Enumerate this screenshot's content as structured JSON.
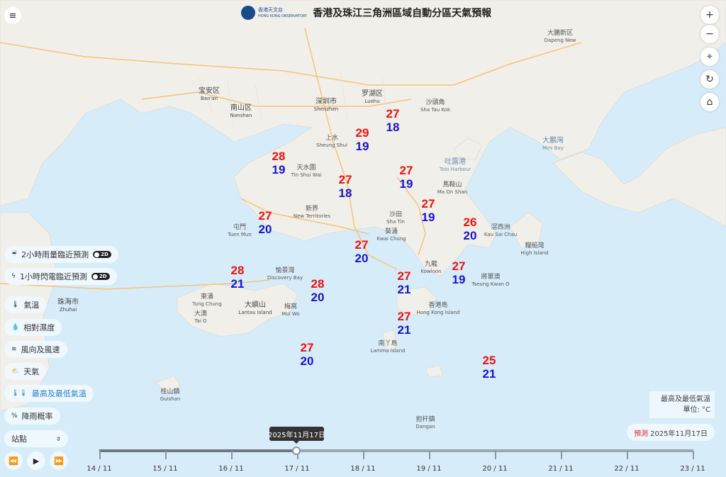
{
  "header": {
    "title": "香港及珠江三角洲區域自動分區天氣預報",
    "logo_zh": "香港天文台",
    "logo_en": "HONG KONG OBSERVATORY"
  },
  "controls": {
    "menu_icon": "hamburger-icon",
    "zoom_in": "+",
    "zoom_out": "−",
    "locate_icon": "crosshair-icon",
    "refresh_icon": "refresh-icon",
    "home_icon": "home-icon"
  },
  "layers": [
    {
      "label": "2小時雨量臨近預測",
      "icon": "rain-cloud-icon",
      "toggle": "2D"
    },
    {
      "label": "1小時閃電臨近預測",
      "icon": "lightning-icon",
      "toggle": "2D"
    },
    {
      "label": "氣溫",
      "icon": "thermometer-icon"
    },
    {
      "label": "相對濕度",
      "icon": "droplet-icon"
    },
    {
      "label": "風向及風速",
      "icon": "wind-icon"
    },
    {
      "label": "天氣",
      "icon": "weather-icon"
    },
    {
      "label": "最高及最低氣溫",
      "icon": "max-min-thermometer-icon",
      "selected": true
    },
    {
      "label": "降雨概率",
      "icon": "percent-icon"
    }
  ],
  "station_select": {
    "value": "站點"
  },
  "playback": {
    "rewind": "⏪",
    "play": "▶",
    "forward": "⏩"
  },
  "legend": {
    "title": "最高及最低氣溫",
    "unit": "單位: °C"
  },
  "forecast": {
    "label": "預測",
    "date": "2025年11月17日"
  },
  "timeline": {
    "ticks": [
      "14 / 11",
      "15 / 11",
      "16 / 11",
      "17 / 11",
      "18 / 11",
      "19 / 11",
      "20 / 11",
      "21 / 11",
      "22 / 11",
      "23 / 11"
    ],
    "selected": "2025年11月17日",
    "selected_index": 3
  },
  "colors": {
    "max": "#f01010",
    "min": "#1414d8",
    "accent": "#2b7fc4"
  },
  "temps": [
    {
      "max": "27",
      "min": "18"
    },
    {
      "max": "29",
      "min": "19"
    },
    {
      "max": "28",
      "min": "19"
    },
    {
      "max": "27",
      "min": "18"
    },
    {
      "max": "27",
      "min": "19"
    },
    {
      "max": "27",
      "min": "19"
    },
    {
      "max": "27",
      "min": "20"
    },
    {
      "max": "26",
      "min": "20"
    },
    {
      "max": "27",
      "min": "20"
    },
    {
      "max": "28",
      "min": "21"
    },
    {
      "max": "28",
      "min": "20"
    },
    {
      "max": "27",
      "min": "21"
    },
    {
      "max": "27",
      "min": "19"
    },
    {
      "max": "27",
      "min": "21"
    },
    {
      "max": "27",
      "min": "20"
    },
    {
      "max": "25",
      "min": "21"
    }
  ],
  "places": [
    {
      "zh": "宝安区",
      "en": "Bao'an"
    },
    {
      "zh": "南山区",
      "en": "Nanshan"
    },
    {
      "zh": "深圳市",
      "en": "Shenzhen"
    },
    {
      "zh": "罗湖区",
      "en": "Luohu"
    },
    {
      "zh": "沙頭角",
      "en": "Sha Tau Kok"
    },
    {
      "zh": "大鵬新区",
      "en": "Dapeng New"
    },
    {
      "zh": "大鵬灣",
      "en": "Mirs Bay"
    },
    {
      "zh": "天水圍",
      "en": "Tin Shui Wai"
    },
    {
      "zh": "新界",
      "en": "New Territories"
    },
    {
      "zh": "馬鞍山",
      "en": "Ma On Shan"
    },
    {
      "zh": "沙田",
      "en": "Sha Tin"
    },
    {
      "zh": "吐露港",
      "en": "Tolo Harbour"
    },
    {
      "zh": "滘西洲",
      "en": "Kau Sai Chau"
    },
    {
      "zh": "糧船灣",
      "en": "High Island"
    },
    {
      "zh": "屯門",
      "en": "Tuen Mun"
    },
    {
      "zh": "葵涌",
      "en": "Kwai Chung"
    },
    {
      "zh": "九龍",
      "en": "Kowloon"
    },
    {
      "zh": "將軍澳",
      "en": "Tseung Kwan O"
    },
    {
      "zh": "香港島",
      "en": "Hong Kong Island"
    },
    {
      "zh": "南丫島",
      "en": "Lamma Island"
    },
    {
      "zh": "東涌",
      "en": "Tung Chung"
    },
    {
      "zh": "愉景灣",
      "en": "Discovery Bay"
    },
    {
      "zh": "大嶼山",
      "en": "Lantau Island"
    },
    {
      "zh": "梅窩",
      "en": "Mui Wo"
    },
    {
      "zh": "大澳",
      "en": "Tai O"
    },
    {
      "zh": "桂山鎮",
      "en": "Guishan"
    },
    {
      "zh": "担杆鎮",
      "en": "Dangan"
    },
    {
      "zh": "珠海市",
      "en": "Zhuhai"
    },
    {
      "zh": "上水",
      "en": "Sheung Shui"
    }
  ]
}
